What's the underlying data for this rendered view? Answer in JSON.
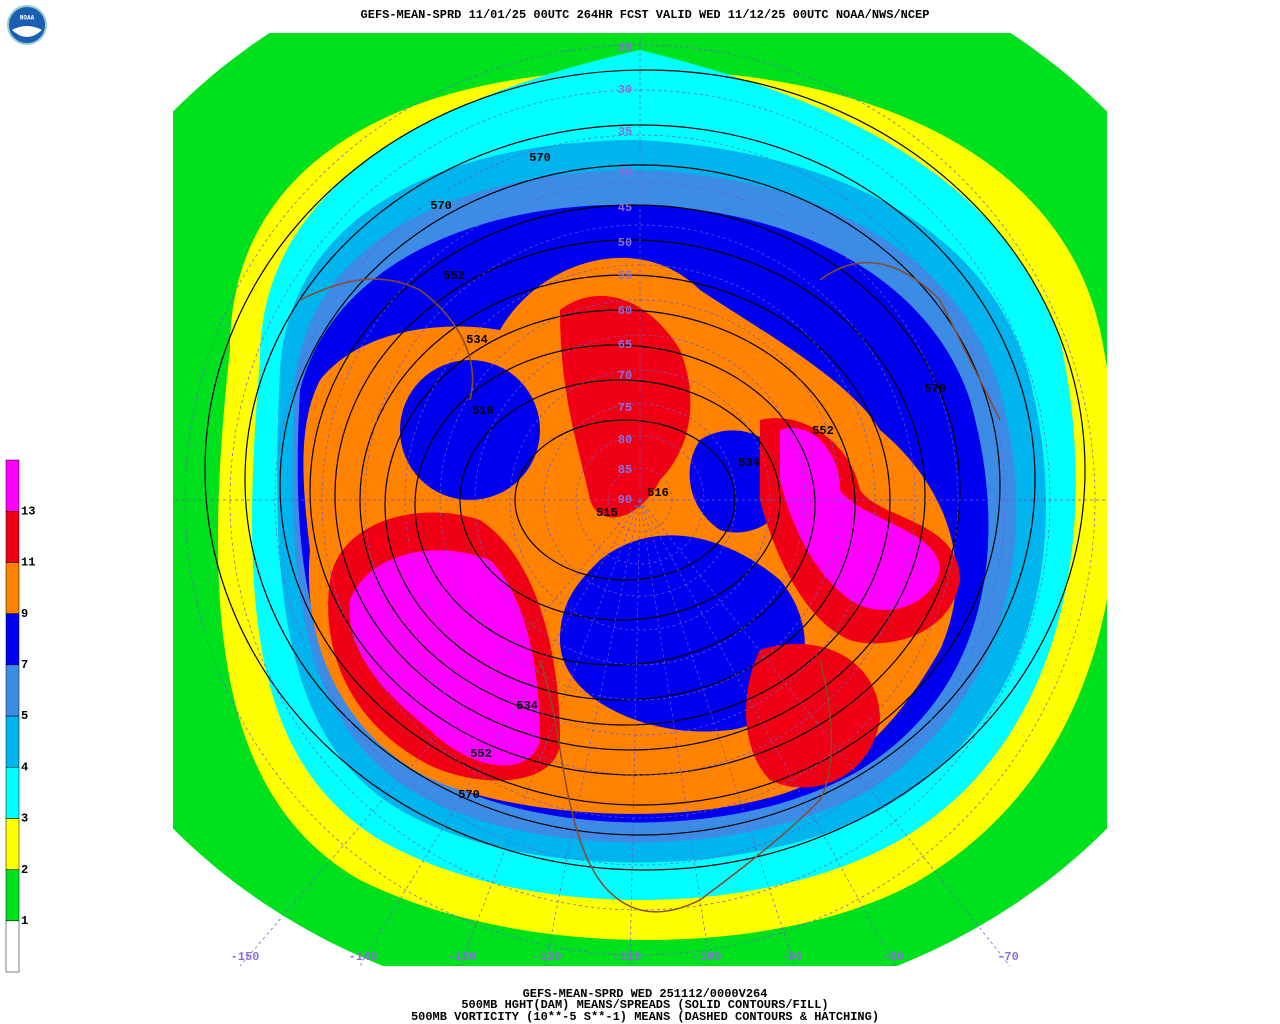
{
  "header": {
    "title": "GEFS-MEAN-SPRD 11/01/25 00UTC 264HR FCST VALID WED 11/12/25 00UTC NOAA/NWS/NCEP",
    "logo": "NOAA"
  },
  "colorbar": {
    "labels": [
      1,
      2,
      3,
      4,
      5,
      7,
      9,
      11,
      13
    ],
    "colors": [
      "#ffffff",
      "#00e11e",
      "#ffff00",
      "#00ffff",
      "#00b4ee",
      "#3c8ce6",
      "#0000f0",
      "#ff8200",
      "#f00014",
      "#ff00ff"
    ]
  },
  "map": {
    "latitude_labels": [
      25,
      30,
      35,
      40,
      45,
      50,
      55,
      60,
      65,
      70,
      75,
      80,
      85,
      90
    ],
    "longitude_labels": [
      -150,
      -140,
      -130,
      -120,
      -110,
      -100,
      -90,
      -80,
      -70
    ],
    "contour_labels": [
      570,
      570,
      552,
      534,
      516,
      515,
      516,
      534,
      552,
      570,
      534,
      552,
      570
    ]
  },
  "footer": {
    "lines": [
      "GEFS-MEAN-SPRD WED 251112/0000V264",
      "500MB HGHT(DAM) MEANS/SPREADS (SOLID CONTOURS/FILL)",
      "500MB VORTICITY (10**-5 S**-1) MEANS (DASHED CONTOURS & HATCHING)"
    ]
  }
}
